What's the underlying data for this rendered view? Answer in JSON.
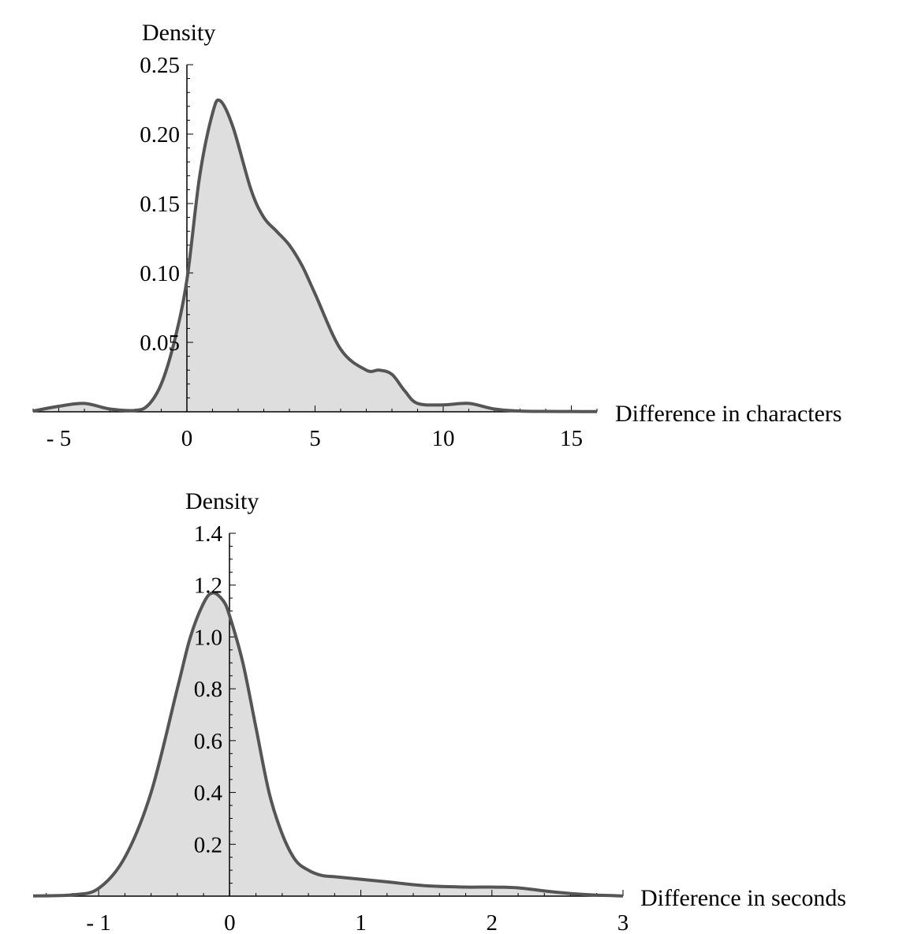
{
  "chart_data": [
    {
      "type": "area",
      "title": "",
      "xlabel": "Difference in characters",
      "ylabel": "Density",
      "xlim": [
        -6,
        16
      ],
      "ylim": [
        0,
        0.25
      ],
      "x_ticks": [
        -5,
        0,
        5,
        10,
        15
      ],
      "x_tick_labels": [
        "- 5",
        "0",
        "5",
        "10",
        "15"
      ],
      "y_ticks": [
        0.05,
        0.1,
        0.15,
        0.2,
        0.25
      ],
      "y_tick_labels": [
        "0.05",
        "0.10",
        "0.15",
        "0.20",
        "0.25"
      ],
      "grid": false,
      "fill_color": "#dedede",
      "line_color": "#555555",
      "series": [
        {
          "x": [
            -6,
            -5,
            -4,
            -3,
            -2,
            -1.5,
            -1,
            -0.5,
            0,
            0.5,
            1,
            1.3,
            1.8,
            2.5,
            3,
            3.5,
            4,
            4.5,
            5,
            6,
            7,
            7.5,
            8,
            8.5,
            9,
            10,
            11,
            12,
            13,
            14,
            15,
            16
          ],
          "y": [
            0.0005,
            0.004,
            0.006,
            0.002,
            0.001,
            0.005,
            0.02,
            0.05,
            0.095,
            0.17,
            0.215,
            0.224,
            0.205,
            0.16,
            0.14,
            0.13,
            0.12,
            0.105,
            0.085,
            0.045,
            0.03,
            0.03,
            0.027,
            0.015,
            0.006,
            0.005,
            0.006,
            0.002,
            0.0005,
            0.0003,
            0.0002,
            0.0001
          ]
        }
      ]
    },
    {
      "type": "area",
      "title": "",
      "xlabel": "Difference in seconds",
      "ylabel": "Density",
      "xlim": [
        -1.5,
        3
      ],
      "ylim": [
        0,
        1.4
      ],
      "x_ticks": [
        -1,
        0,
        1,
        2,
        3
      ],
      "x_tick_labels": [
        "- 1",
        "0",
        "1",
        "2",
        "3"
      ],
      "y_ticks": [
        0.2,
        0.4,
        0.6,
        0.8,
        1.0,
        1.2,
        1.4
      ],
      "y_tick_labels": [
        "0.2",
        "0.4",
        "0.6",
        "0.8",
        "1.0",
        "1.2",
        "1.4"
      ],
      "grid": false,
      "fill_color": "#dedede",
      "line_color": "#555555",
      "series": [
        {
          "x": [
            -1.5,
            -1.2,
            -1,
            -0.8,
            -0.6,
            -0.4,
            -0.3,
            -0.2,
            -0.13,
            -0.05,
            0,
            0.1,
            0.2,
            0.3,
            0.4,
            0.5,
            0.6,
            0.7,
            0.8,
            1,
            1.2,
            1.5,
            1.8,
            2,
            2.2,
            2.4,
            2.6,
            2.8,
            3
          ],
          "y": [
            0.001,
            0.005,
            0.03,
            0.15,
            0.4,
            0.8,
            1.0,
            1.13,
            1.17,
            1.14,
            1.08,
            0.9,
            0.65,
            0.4,
            0.24,
            0.14,
            0.1,
            0.08,
            0.075,
            0.065,
            0.055,
            0.04,
            0.035,
            0.035,
            0.032,
            0.02,
            0.01,
            0.004,
            0.001
          ]
        }
      ]
    }
  ]
}
